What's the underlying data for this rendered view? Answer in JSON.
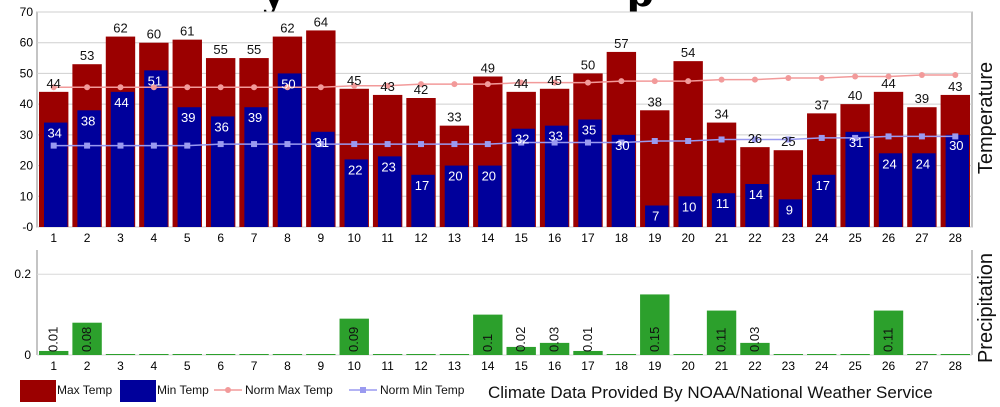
{
  "chart_data": [
    {
      "type": "bar",
      "panel": "temperature",
      "ylabel": "Temperature",
      "ylim": [
        0,
        70
      ],
      "yticks": [
        70,
        60,
        50,
        40,
        30,
        20,
        10,
        0
      ],
      "categories": [
        "1",
        "2",
        "3",
        "4",
        "5",
        "6",
        "7",
        "8",
        "9",
        "10",
        "11",
        "12",
        "13",
        "14",
        "15",
        "16",
        "17",
        "18",
        "19",
        "20",
        "21",
        "22",
        "23",
        "24",
        "25",
        "26",
        "27",
        "28"
      ],
      "series": [
        {
          "name": "Max Temp",
          "kind": "bar",
          "color": "#9b0000",
          "values": [
            44,
            53,
            62,
            60,
            61,
            55,
            55,
            62,
            64,
            45,
            43,
            42,
            33,
            49,
            44,
            45,
            50,
            57,
            38,
            54,
            34,
            26,
            25,
            37,
            40,
            44,
            39,
            43
          ]
        },
        {
          "name": "Min Temp",
          "kind": "bar",
          "color": "#00009b",
          "values": [
            34,
            38,
            44,
            51,
            39,
            36,
            39,
            50,
            31,
            22,
            23,
            17,
            20,
            20,
            32,
            33,
            35,
            30,
            7,
            10,
            11,
            14,
            9,
            17,
            31,
            24,
            24,
            30
          ]
        },
        {
          "name": "Norm Max Temp",
          "kind": "line",
          "color": "#f29a9a",
          "values": [
            45.5,
            45.5,
            45.5,
            45.5,
            45.5,
            45.5,
            45.5,
            45.5,
            45.5,
            46,
            46,
            46.5,
            46.5,
            46.5,
            47,
            47,
            47,
            47.5,
            47.5,
            47.5,
            48,
            48,
            48.5,
            48.5,
            49,
            49,
            49.5,
            49.5
          ]
        },
        {
          "name": "Norm Min Temp",
          "kind": "line",
          "color": "#9a9af0",
          "values": [
            26.5,
            26.5,
            26.5,
            26.5,
            26.5,
            27,
            27,
            27,
            27,
            27,
            27,
            27,
            27,
            27,
            27.5,
            27.5,
            27.5,
            27.5,
            28,
            28,
            28.5,
            28.5,
            28.5,
            29,
            29,
            29.5,
            29.5,
            29.5
          ]
        }
      ]
    },
    {
      "type": "bar",
      "panel": "precipitation",
      "ylabel": "Precipitation",
      "ylim": [
        0,
        0.26
      ],
      "yticks": [
        0.2,
        0
      ],
      "categories": [
        "1",
        "2",
        "3",
        "4",
        "5",
        "6",
        "7",
        "8",
        "9",
        "10",
        "11",
        "12",
        "13",
        "14",
        "15",
        "16",
        "17",
        "18",
        "19",
        "20",
        "21",
        "22",
        "23",
        "24",
        "25",
        "26",
        "27",
        "28"
      ],
      "series": [
        {
          "name": "Precipitation",
          "kind": "bar",
          "color": "#2ca02c",
          "values": [
            0.01,
            0.08,
            0,
            0,
            0,
            0,
            0,
            0,
            0,
            0.09,
            0,
            0,
            0,
            0.1,
            0.02,
            0.03,
            0.01,
            0,
            0.15,
            0,
            0.11,
            0.03,
            0,
            0,
            0,
            0.11,
            0,
            0
          ]
        },
        {
          "name": "labels",
          "kind": "label",
          "values": [
            "0.01",
            "0.08",
            "",
            "",
            "",
            "",
            "",
            "",
            "",
            "0.09",
            "",
            "",
            "",
            "0.1",
            "0.02",
            "0.03",
            "0.01",
            "",
            "0.15",
            "",
            "0.11",
            "0.03",
            "",
            "",
            "",
            "0.11",
            "",
            ""
          ]
        }
      ]
    }
  ],
  "legend": [
    {
      "label": "Max Temp",
      "swatch": "bar",
      "color": "#9b0000"
    },
    {
      "label": "Min Temp",
      "swatch": "bar",
      "color": "#00009b"
    },
    {
      "label": "Norm Max Temp",
      "swatch": "line",
      "color": "#f29a9a"
    },
    {
      "label": "Norm Min Temp",
      "swatch": "line",
      "color": "#9a9af0"
    }
  ],
  "credit": "Climate Data Provided By NOAA/National Weather Service"
}
